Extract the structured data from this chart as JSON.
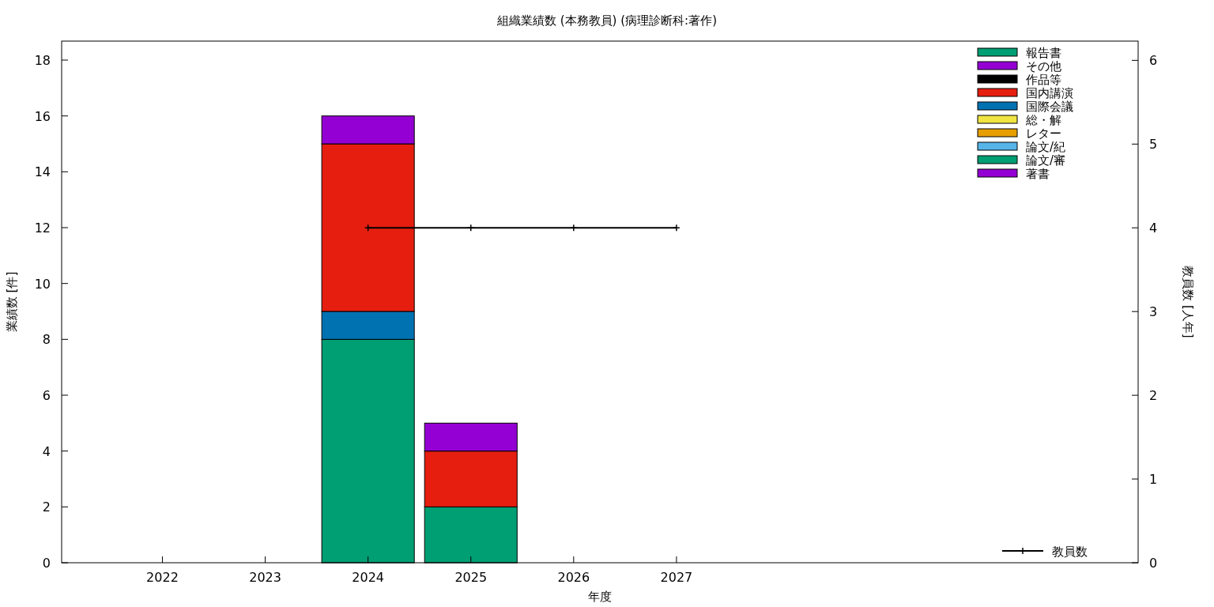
{
  "chart_data": {
    "type": "bar",
    "title": "組織業績数 (本務教員) (病理診断科:著作)",
    "xlabel": "年度",
    "ylabel": "業績数 [件]",
    "y2label": "教員数 [人年]",
    "x": [
      2024,
      2025
    ],
    "stacked": true,
    "legend": "right",
    "grid": false,
    "xlim": [
      2021.02,
      2031.49
    ],
    "xticks": [
      2022,
      2023,
      2024,
      2025,
      2026,
      2027
    ],
    "ylim": [
      0,
      18.68
    ],
    "yticks": [
      0,
      2,
      4,
      6,
      8,
      10,
      12,
      14,
      16,
      18
    ],
    "y2lim": [
      0,
      6.23
    ],
    "y2ticks": [
      0,
      1,
      2,
      3,
      4,
      5,
      6
    ],
    "series": [
      {
        "name": "著書",
        "color": "#9400d3",
        "values": [
          0,
          0
        ]
      },
      {
        "name": "論文/審",
        "color": "#009e73",
        "values": [
          8,
          2
        ]
      },
      {
        "name": "論文/紀",
        "color": "#56b4e9",
        "values": [
          0,
          0
        ]
      },
      {
        "name": "レター",
        "color": "#e69f00",
        "values": [
          0,
          0
        ]
      },
      {
        "name": "総・解",
        "color": "#f0e442",
        "values": [
          0,
          0
        ]
      },
      {
        "name": "国際会議",
        "color": "#0072b2",
        "values": [
          1,
          0
        ]
      },
      {
        "name": "国内講演",
        "color": "#e51e10",
        "values": [
          6,
          2
        ]
      },
      {
        "name": "作品等",
        "color": "#000000",
        "values": [
          0,
          0
        ]
      },
      {
        "name": "その他",
        "color": "#9400d3",
        "values": [
          1,
          1
        ]
      },
      {
        "name": "報告書",
        "color": "#009e73",
        "values": [
          0,
          0
        ]
      },
      {
        "name": "教員数",
        "type": "line",
        "axis": "y2",
        "color": "#000000",
        "marker": "cross",
        "x": [
          2024,
          2025,
          2026,
          2027
        ],
        "values": [
          4,
          4,
          4,
          4
        ]
      }
    ]
  }
}
